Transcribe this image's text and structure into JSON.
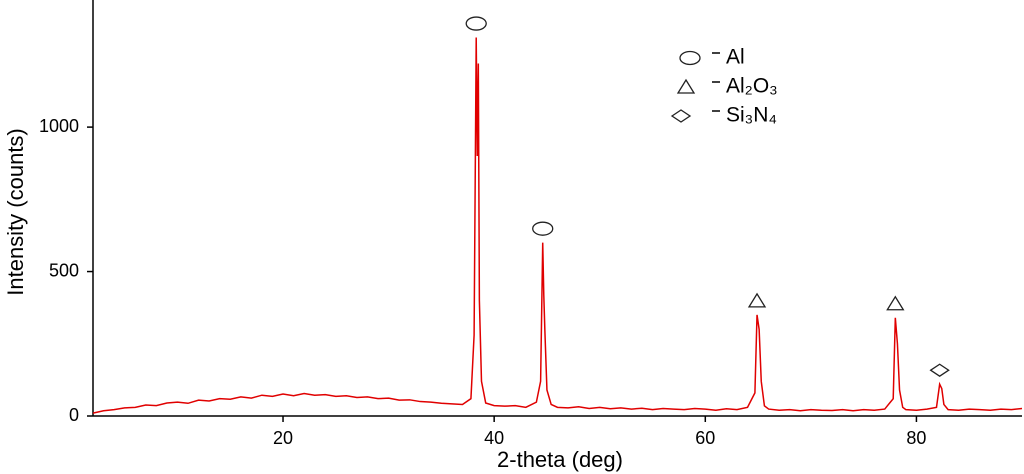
{
  "chart_data": {
    "type": "line",
    "xlabel": "2-theta (deg)",
    "ylabel": "Intensity (counts)",
    "color": "#e00000",
    "x": [
      2,
      3,
      4,
      5,
      6,
      7,
      8,
      9,
      10,
      11,
      12,
      13,
      14,
      15,
      16,
      17,
      18,
      19,
      20,
      21,
      22,
      23,
      24,
      25,
      26,
      27,
      28,
      29,
      30,
      31,
      32,
      33,
      34,
      35,
      36,
      37,
      37.8,
      38.1,
      38.3,
      38.4,
      38.5,
      38.6,
      38.8,
      39.2,
      40,
      41,
      42,
      43,
      44,
      44.4,
      44.6,
      44.7,
      44.8,
      45,
      45.4,
      46,
      47,
      48,
      49,
      50,
      51,
      52,
      53,
      54,
      55,
      56,
      57,
      58,
      59,
      60,
      61,
      62,
      63,
      64,
      64.7,
      64.9,
      65.1,
      65.3,
      65.6,
      66,
      67,
      68,
      69,
      70,
      71,
      72,
      73,
      74,
      75,
      76,
      77,
      77.8,
      78,
      78.2,
      78.4,
      78.7,
      79,
      80,
      81,
      81.9,
      82.2,
      82.4,
      82.6,
      83,
      84,
      85,
      86,
      87,
      88,
      89,
      90
    ],
    "values": [
      10,
      18,
      22,
      28,
      30,
      38,
      36,
      45,
      48,
      44,
      55,
      52,
      60,
      58,
      66,
      62,
      72,
      68,
      76,
      70,
      78,
      72,
      74,
      68,
      70,
      64,
      66,
      60,
      62,
      55,
      56,
      50,
      48,
      44,
      42,
      40,
      60,
      280,
      1310,
      900,
      1220,
      400,
      120,
      45,
      36,
      34,
      36,
      30,
      48,
      120,
      600,
      420,
      300,
      90,
      40,
      30,
      28,
      32,
      26,
      30,
      25,
      28,
      24,
      27,
      22,
      26,
      24,
      22,
      26,
      24,
      20,
      25,
      22,
      30,
      80,
      350,
      300,
      120,
      35,
      24,
      20,
      22,
      18,
      22,
      20,
      19,
      22,
      18,
      22,
      20,
      24,
      60,
      340,
      250,
      90,
      30,
      22,
      20,
      24,
      30,
      110,
      95,
      40,
      22,
      20,
      24,
      22,
      20,
      24,
      22,
      26
    ],
    "xlim": [
      2,
      90
    ],
    "ylim": [
      0,
      1440
    ],
    "xticks": [
      20,
      40,
      60,
      80
    ],
    "yticks": [
      0,
      500,
      1000
    ],
    "phases": [
      {
        "symbol": "circle",
        "name": "Al"
      },
      {
        "symbol": "triangle",
        "name": "Al₂O₃"
      },
      {
        "symbol": "diamond",
        "name": "Si₃N₄"
      }
    ],
    "peaks": [
      {
        "x": 38.3,
        "phase": 0
      },
      {
        "x": 44.6,
        "phase": 0
      },
      {
        "x": 64.9,
        "phase": 1
      },
      {
        "x": 78,
        "phase": 1
      },
      {
        "x": 82.2,
        "phase": 2
      }
    ]
  }
}
